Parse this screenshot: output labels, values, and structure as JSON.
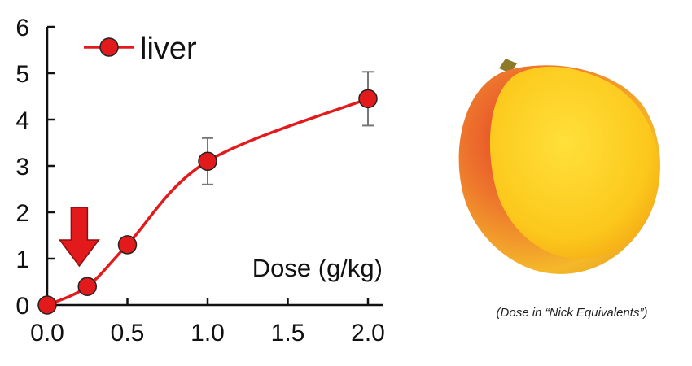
{
  "chart_data": {
    "type": "line",
    "x": [
      0.0,
      0.25,
      0.5,
      1.0,
      2.0
    ],
    "series": [
      {
        "name": "liver",
        "values": [
          0.0,
          0.4,
          1.3,
          3.1,
          4.45
        ],
        "error": [
          0,
          0,
          0,
          0.5,
          0.58
        ],
        "color": "#e31a1c",
        "marker": "circle"
      }
    ],
    "xlabel": "Dose (g/kg)",
    "ylabel": "",
    "xlim": [
      0.0,
      2.0
    ],
    "ylim": [
      0,
      6
    ],
    "xticks": [
      "0.0",
      "0.5",
      "1.0",
      "1.5",
      "2.0"
    ],
    "yticks": [
      "0",
      "1",
      "2",
      "3",
      "4",
      "5",
      "6"
    ],
    "grid": false,
    "legend_position": "top-left",
    "annotation": {
      "type": "arrow",
      "points_to_x": 0.2,
      "color": "#e31a1c"
    }
  },
  "caption": "(Dose in “Nick Equivalents”)",
  "image": {
    "subject": "mango-half",
    "colors": [
      "#f5b800",
      "#e9322a",
      "#fcd21a"
    ]
  }
}
